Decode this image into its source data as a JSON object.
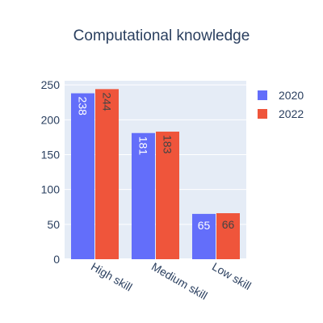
{
  "chart_data": {
    "type": "bar",
    "title": "Computational knowledge",
    "xlabel": "",
    "ylabel": "",
    "categories": [
      "High skill",
      "Medium skill",
      "Low skill"
    ],
    "series": [
      {
        "name": "2020",
        "values": [
          238,
          181,
          65
        ],
        "color": "#636efa"
      },
      {
        "name": "2022",
        "values": [
          244,
          183,
          66
        ],
        "color": "#ef553b"
      }
    ],
    "ylim": [
      0,
      256
    ],
    "yticks": [
      0,
      50,
      100,
      150,
      200,
      250
    ],
    "grid": true,
    "legend_position": "top-right",
    "bar_label_colors": {
      "2020": "#ffffff",
      "2022": "#444444"
    }
  }
}
